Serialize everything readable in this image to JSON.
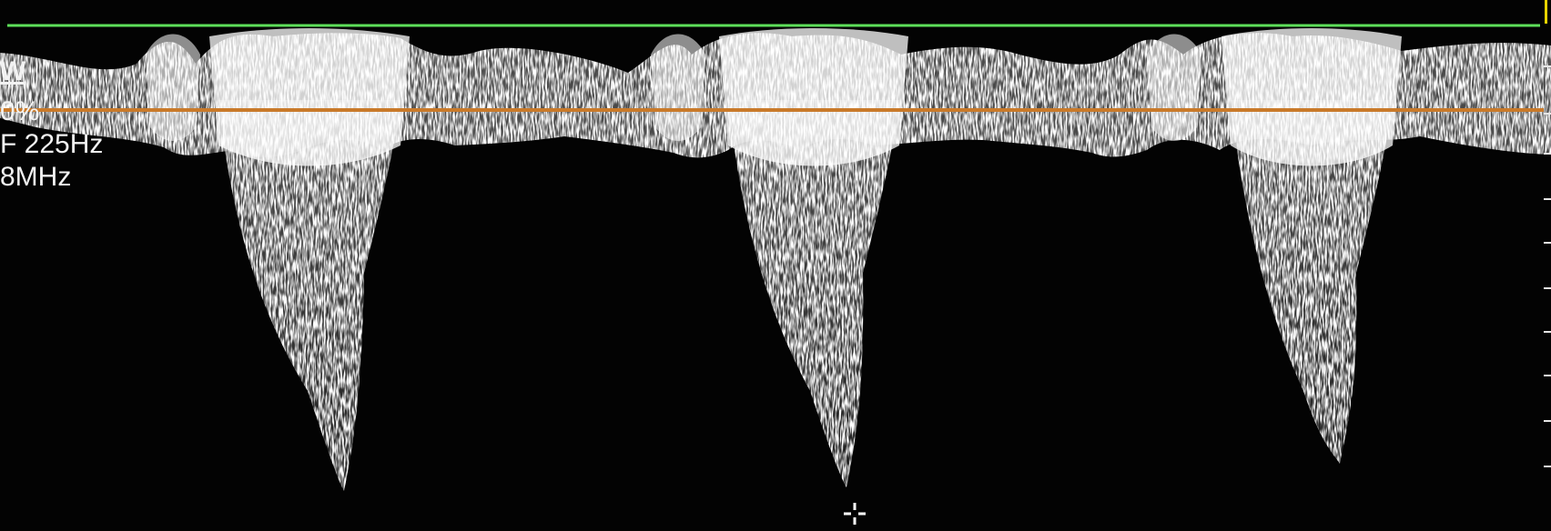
{
  "readout": {
    "mode": "W",
    "gain": "0%",
    "prf": "F 225Hz",
    "frequency": "8MHz"
  },
  "colors": {
    "background": "#030303",
    "top_trace": "#5ee05a",
    "baseline": "#c97a2a",
    "sweep_marker": "#e8d400",
    "text": "#f2f2f2"
  },
  "icons": {
    "cursor": "crosshair-cursor-icon"
  },
  "waveform": {
    "cycles": 3
  }
}
